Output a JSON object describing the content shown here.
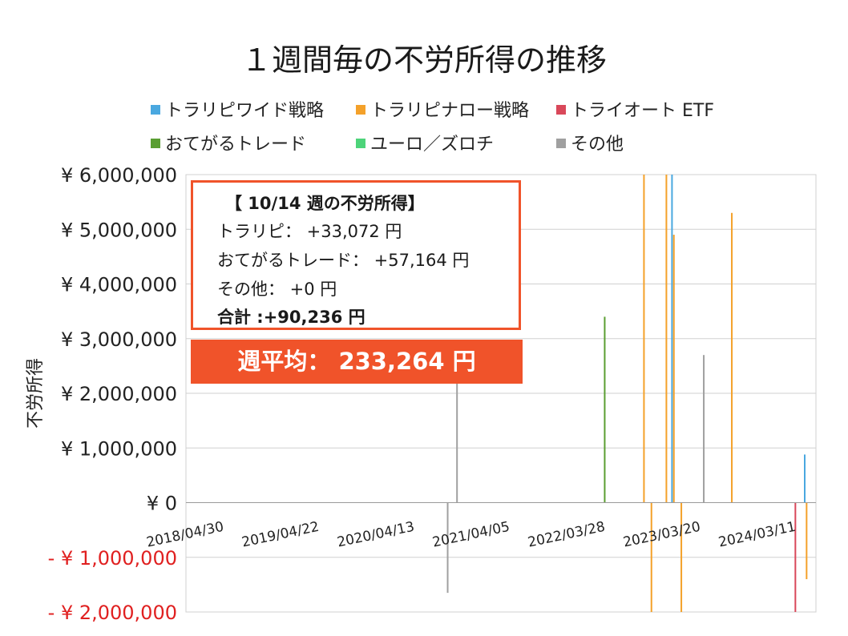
{
  "chart_data": {
    "type": "bar",
    "stacked": true,
    "title": "１週間毎の不労所得の推移",
    "ylabel": "不労所得",
    "ylim": [
      -2000000,
      6000000
    ],
    "grid": true,
    "legend_position": "top",
    "y_ticks": [
      {
        "value": 6000000,
        "label": "¥ 6,000,000"
      },
      {
        "value": 5000000,
        "label": "¥ 5,000,000"
      },
      {
        "value": 4000000,
        "label": "¥ 4,000,000"
      },
      {
        "value": 3000000,
        "label": "¥ 3,000,000"
      },
      {
        "value": 2000000,
        "label": "¥ 2,000,000"
      },
      {
        "value": 1000000,
        "label": "¥ 1,000,000"
      },
      {
        "value": 0,
        "label": "¥ 0"
      },
      {
        "value": -1000000,
        "label": "- ¥ 1,000,000"
      },
      {
        "value": -2000000,
        "label": "- ¥ 2,000,000"
      }
    ],
    "x_tick_labels": [
      "2018/04/30",
      "2019/04/22",
      "2020/04/13",
      "2021/04/05",
      "2022/03/28",
      "2023/03/20",
      "2024/03/11"
    ],
    "x_start": "2018/04/30",
    "x_end": "2024/10/14",
    "series": [
      {
        "name": "トラリピワイド戦略",
        "color": "#4aa8e0"
      },
      {
        "name": "トラリピナロー戦略",
        "color": "#f4a12a"
      },
      {
        "name": "トライオート ETF",
        "color": "#d9485a"
      },
      {
        "name": "おてがるトレード",
        "color": "#5a9e32"
      },
      {
        "name": "ユーロ／ズロチ",
        "color": "#4dd47a"
      },
      {
        "name": "その他",
        "color": "#a0a0a0"
      }
    ],
    "notable_weeks": [
      {
        "date": "2021/02/08",
        "series": "その他",
        "value": 2200000
      },
      {
        "date": "2021/01/04",
        "series": "その他",
        "value": -1650000
      },
      {
        "date": "2022/08/15",
        "series": "おてがるトレード",
        "value": 3400000
      },
      {
        "date": "2023/01/09",
        "series": "トラリピナロー戦略",
        "value": 6000000
      },
      {
        "date": "2023/04/03",
        "series": "トラリピナロー戦略",
        "value": 6000000
      },
      {
        "date": "2023/04/24",
        "series": "トラリピワイド戦略",
        "value": 6000000
      },
      {
        "date": "2023/05/01",
        "series": "トラリピナロー戦略",
        "value": 4900000
      },
      {
        "date": "2023/08/21",
        "series": "その他",
        "value": 2700000
      },
      {
        "date": "2023/12/04",
        "series": "トラリピナロー戦略",
        "value": 5300000
      },
      {
        "date": "2023/02/06",
        "series": "トラリピナロー戦略",
        "value": -2000000
      },
      {
        "date": "2023/05/29",
        "series": "トラリピナロー戦略",
        "value": -2000000
      },
      {
        "date": "2024/07/29",
        "series": "トライオート ETF",
        "value": -2000000
      },
      {
        "date": "2024/09/09",
        "series": "トラリピナロー戦略",
        "value": -1400000
      },
      {
        "date": "2024/09/02",
        "series": "トラリピワイド戦略",
        "value": 880000
      }
    ]
  },
  "info_box": {
    "heading": "【 10/14 週の不労所得】",
    "line1": "トラリピ： +33,072 円",
    "line2": "おてがるトレード： +57,164 円",
    "line3": "その他： +0 円",
    "total": "合計 :+90,236 円"
  },
  "average_banner": "週平均： 233,264 円",
  "colors": {
    "accent": "#f0532a",
    "negative_axis_label": "#e02020",
    "grid": "#d0d0d0"
  }
}
